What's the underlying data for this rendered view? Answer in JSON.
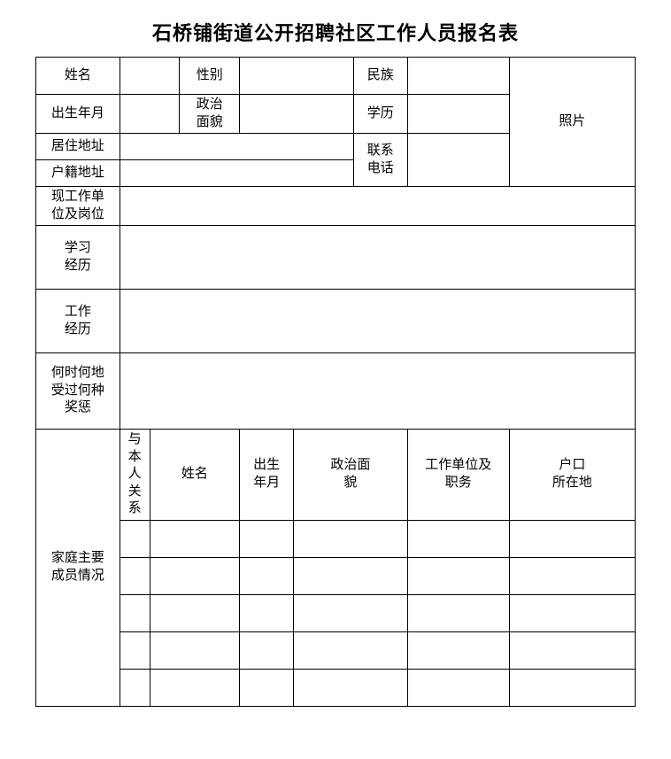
{
  "title": "石桥铺街道公开招聘社区工作人员报名表",
  "labels": {
    "name": "姓名",
    "gender": "性别",
    "ethnicity": "民族",
    "birth": "出生年月",
    "political": "政治\n面貌",
    "education": "学历",
    "photo": "照片",
    "residence": "居住地址",
    "household": "户籍地址",
    "contact": "联系\n电话",
    "workUnit": "现工作单\n位及岗位",
    "studyHistory": "学习\n经历",
    "workHistory": "工作\n经历",
    "awards": "何时何地\n受过何种\n奖惩",
    "family": "家庭主要\n成员情况",
    "familyRelation": "与\n本\n人\n关\n系",
    "familyName": "姓名",
    "familyBirth": "出生\n年月",
    "familyPolitical": "政治面\n貌",
    "familyWork": "工作单位及\n职务",
    "familyHukou": "户口\n所在地"
  },
  "values": {
    "name": "",
    "gender": "",
    "ethnicity": "",
    "birth": "",
    "political": "",
    "education": "",
    "residence": "",
    "household": "",
    "contact": "",
    "workUnit": "",
    "studyHistory": "",
    "workHistory": "",
    "awards": "",
    "familyRows": [
      {
        "relation": "",
        "name": "",
        "birth": "",
        "political": "",
        "work": "",
        "hukou": ""
      },
      {
        "relation": "",
        "name": "",
        "birth": "",
        "political": "",
        "work": "",
        "hukou": ""
      },
      {
        "relation": "",
        "name": "",
        "birth": "",
        "political": "",
        "work": "",
        "hukou": ""
      },
      {
        "relation": "",
        "name": "",
        "birth": "",
        "political": "",
        "work": "",
        "hukou": ""
      },
      {
        "relation": "",
        "name": "",
        "birth": "",
        "political": "",
        "work": "",
        "hukou": ""
      }
    ]
  },
  "style": {
    "borderColor": "#000000",
    "background": "#ffffff",
    "titleFontSize": 22,
    "cellFontSize": 15,
    "fontFamily": "SimSun"
  }
}
